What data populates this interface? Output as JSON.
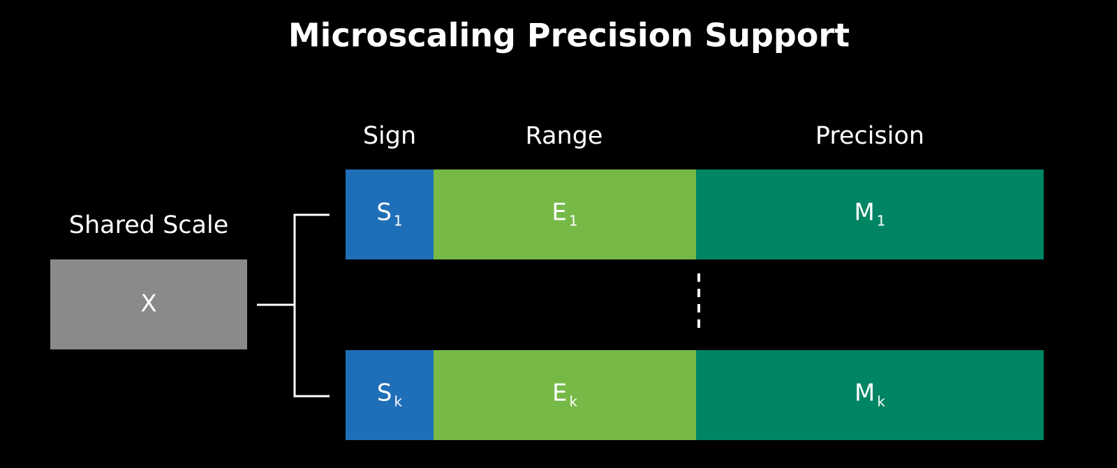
{
  "title": "Microscaling Precision Support",
  "columns": [
    "Sign",
    "Range",
    "Precision"
  ],
  "shared_scale": {
    "label": "Shared Scale",
    "value": "X"
  },
  "rows": [
    [
      {
        "base": "S",
        "sub": "1"
      },
      {
        "base": "E",
        "sub": "1"
      },
      {
        "base": "M",
        "sub": "1"
      }
    ],
    [
      {
        "base": "S",
        "sub": "k"
      },
      {
        "base": "E",
        "sub": "k"
      },
      {
        "base": "M",
        "sub": "k"
      }
    ]
  ]
}
